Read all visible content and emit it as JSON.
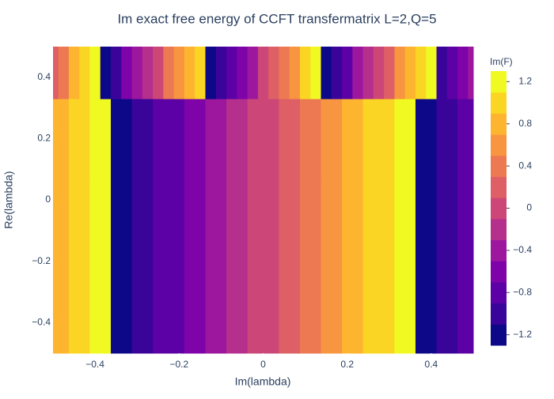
{
  "chart_data": {
    "type": "contour",
    "title": "Im exact free energy of CCFT transfermatrix L=2,Q=5",
    "x_label": "Im(lambda)",
    "y_label": "Re(lambda)",
    "colorbar_title": "Im(F)",
    "x": [
      -0.5,
      -0.475,
      -0.45,
      -0.425,
      -0.4,
      -0.375,
      -0.35,
      -0.325,
      -0.3,
      -0.275,
      -0.25,
      -0.225,
      -0.2,
      -0.175,
      -0.15,
      -0.125,
      -0.1,
      -0.075,
      -0.05,
      -0.025,
      0,
      0.025,
      0.05,
      0.075,
      0.1,
      0.125,
      0.15,
      0.175,
      0.2,
      0.225,
      0.25,
      0.275,
      0.3,
      0.325,
      0.35,
      0.375,
      0.4,
      0.425,
      0.45,
      0.475,
      0.5
    ],
    "y": [
      -0.1,
      0.24,
      0.42
    ],
    "z": [
      [
        0.8,
        0.89,
        0.98,
        1.07,
        1.16,
        1.25,
        -1.26,
        -1.17,
        -1.08,
        -0.99,
        -0.9,
        -0.81,
        -0.72,
        -0.63,
        -0.54,
        -0.45,
        -0.36,
        -0.27,
        -0.18,
        -0.09,
        0,
        0.09,
        0.18,
        0.27,
        0.36,
        0.45,
        0.54,
        0.63,
        0.72,
        0.81,
        0.9,
        0.99,
        1.08,
        1.17,
        1.26,
        -1.25,
        -1.16,
        -1.07,
        -0.98,
        -0.89,
        -0.8
      ],
      [
        0.8,
        0.89,
        0.98,
        1.07,
        1.16,
        1.25,
        -1.26,
        -1.17,
        -1.08,
        -0.99,
        -0.9,
        -0.81,
        -0.72,
        -0.63,
        -0.54,
        -0.45,
        -0.36,
        -0.27,
        -0.18,
        -0.09,
        0,
        0.09,
        0.18,
        0.27,
        0.36,
        0.45,
        0.54,
        0.63,
        0.72,
        0.81,
        0.9,
        0.99,
        1.08,
        1.17,
        1.26,
        -1.25,
        -1.16,
        -1.07,
        -0.98,
        -0.89,
        -0.8
      ],
      [
        0.22,
        0.47,
        0.71,
        0.96,
        1.2,
        -1.15,
        -0.91,
        -0.66,
        -0.42,
        -0.17,
        0.07,
        0.32,
        0.56,
        0.81,
        1.05,
        -1.3,
        -1.05,
        -0.81,
        -0.56,
        -0.32,
        -0.07,
        0.17,
        0.42,
        0.66,
        0.91,
        1.15,
        -1.2,
        -0.96,
        -0.71,
        -0.47,
        -0.22,
        0.02,
        0.27,
        0.51,
        0.76,
        1.01,
        1.25,
        -1.1,
        -0.86,
        -0.61,
        -0.37
      ]
    ],
    "xlim": [
      -0.5,
      0.5
    ],
    "ylim": [
      -0.5,
      0.5
    ],
    "zlim": [
      -1.3,
      1.3
    ],
    "contour_size": 0.2,
    "xticks": [
      {
        "value": -0.4,
        "label": "−0.4"
      },
      {
        "value": -0.2,
        "label": "−0.2"
      },
      0,
      0.2,
      0.4
    ],
    "yticks": [
      {
        "value": -0.4,
        "label": "−0.4"
      },
      {
        "value": -0.2,
        "label": "−0.2"
      },
      0,
      0.2,
      0.4
    ],
    "zticks": [
      {
        "value": -1.2,
        "label": "−1.2"
      },
      {
        "value": -0.8,
        "label": "−0.8"
      },
      {
        "value": -0.4,
        "label": "−0.4"
      },
      0,
      0.4,
      0.8,
      1.2
    ],
    "colorscale": [
      "#0d0887",
      "#3a049a",
      "#5c01a6",
      "#7e03a8",
      "#9c179e",
      "#b52f8c",
      "#cc4778",
      "#de5f65",
      "#ed7953",
      "#f89540",
      "#fdb42f",
      "#fbd524",
      "#f0f921"
    ]
  }
}
